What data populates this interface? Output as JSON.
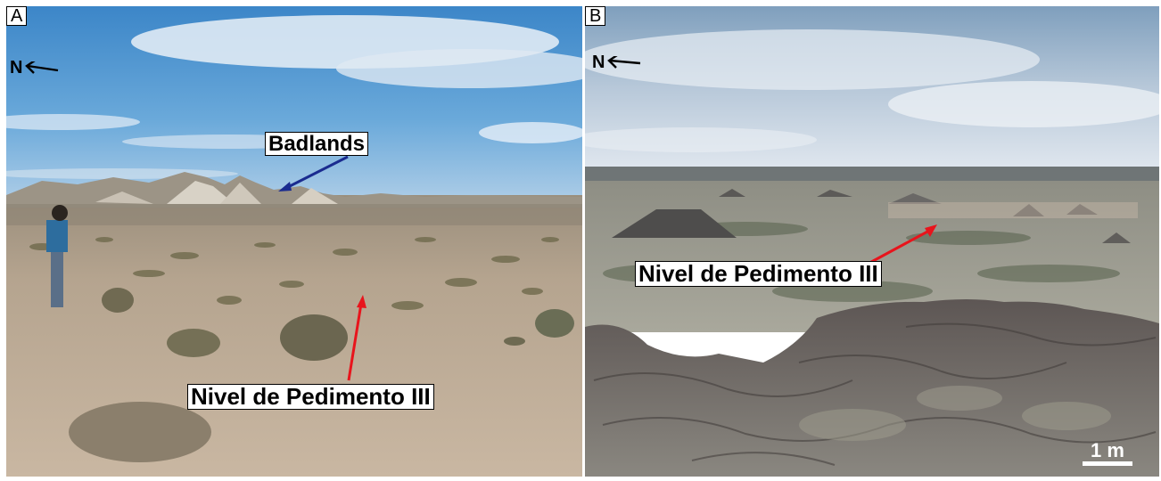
{
  "panel_a": {
    "letter": "A",
    "north": "N",
    "badlands_label": "Badlands",
    "surface_label": "Nivel de Pedimento III",
    "arrow_colors": {
      "badlands": "#1a2b8f",
      "surface": "#e8141c"
    }
  },
  "panel_b": {
    "letter": "B",
    "north": "N",
    "surface_label": "Nivel de Pedimento III",
    "scale_label": "1 m",
    "arrow_colors": {
      "surface": "#e8141c"
    }
  },
  "icons": [
    "north-arrow-icon",
    "pointer-arrow-icon"
  ]
}
